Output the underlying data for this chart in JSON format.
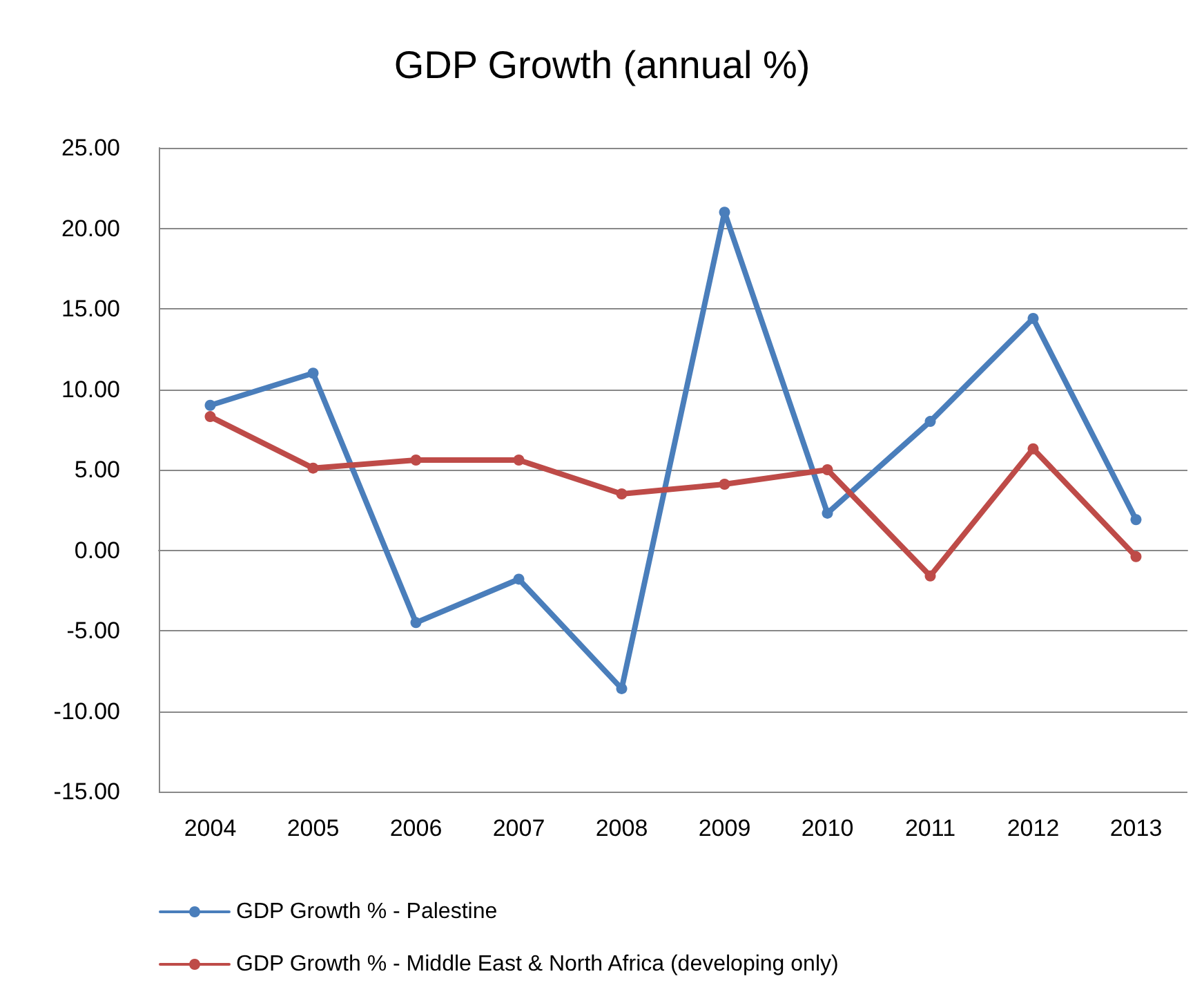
{
  "chart_data": {
    "type": "line",
    "title": "GDP Growth (annual %)",
    "categories": [
      "2004",
      "2005",
      "2006",
      "2007",
      "2008",
      "2009",
      "2010",
      "2011",
      "2012",
      "2013"
    ],
    "series": [
      {
        "name": "GDP Growth % - Palestine",
        "color": "#4a7ebb",
        "values": [
          9.0,
          11.0,
          -4.5,
          -1.8,
          -8.6,
          21.0,
          2.3,
          8.0,
          14.4,
          1.9
        ]
      },
      {
        "name": "GDP Growth % - Middle East & North Africa (developing only)",
        "color": "#be4b48",
        "values": [
          8.3,
          5.1,
          5.6,
          5.6,
          3.5,
          4.1,
          5.0,
          -1.6,
          6.3,
          -0.4
        ]
      }
    ],
    "ylim": [
      -15,
      25
    ],
    "yticks": [
      {
        "value": -15,
        "label": "-15.00"
      },
      {
        "value": -10,
        "label": "-10.00"
      },
      {
        "value": -5,
        "label": "-5.00"
      },
      {
        "value": 0,
        "label": "0.00"
      },
      {
        "value": 5,
        "label": "5.00"
      },
      {
        "value": 10,
        "label": "10.00"
      },
      {
        "value": 15,
        "label": "15.00"
      },
      {
        "value": 20,
        "label": "20.00"
      },
      {
        "value": 25,
        "label": "25.00"
      }
    ],
    "grid": "y",
    "legend": "bottom",
    "marker": "circle",
    "line_style": "solid"
  }
}
